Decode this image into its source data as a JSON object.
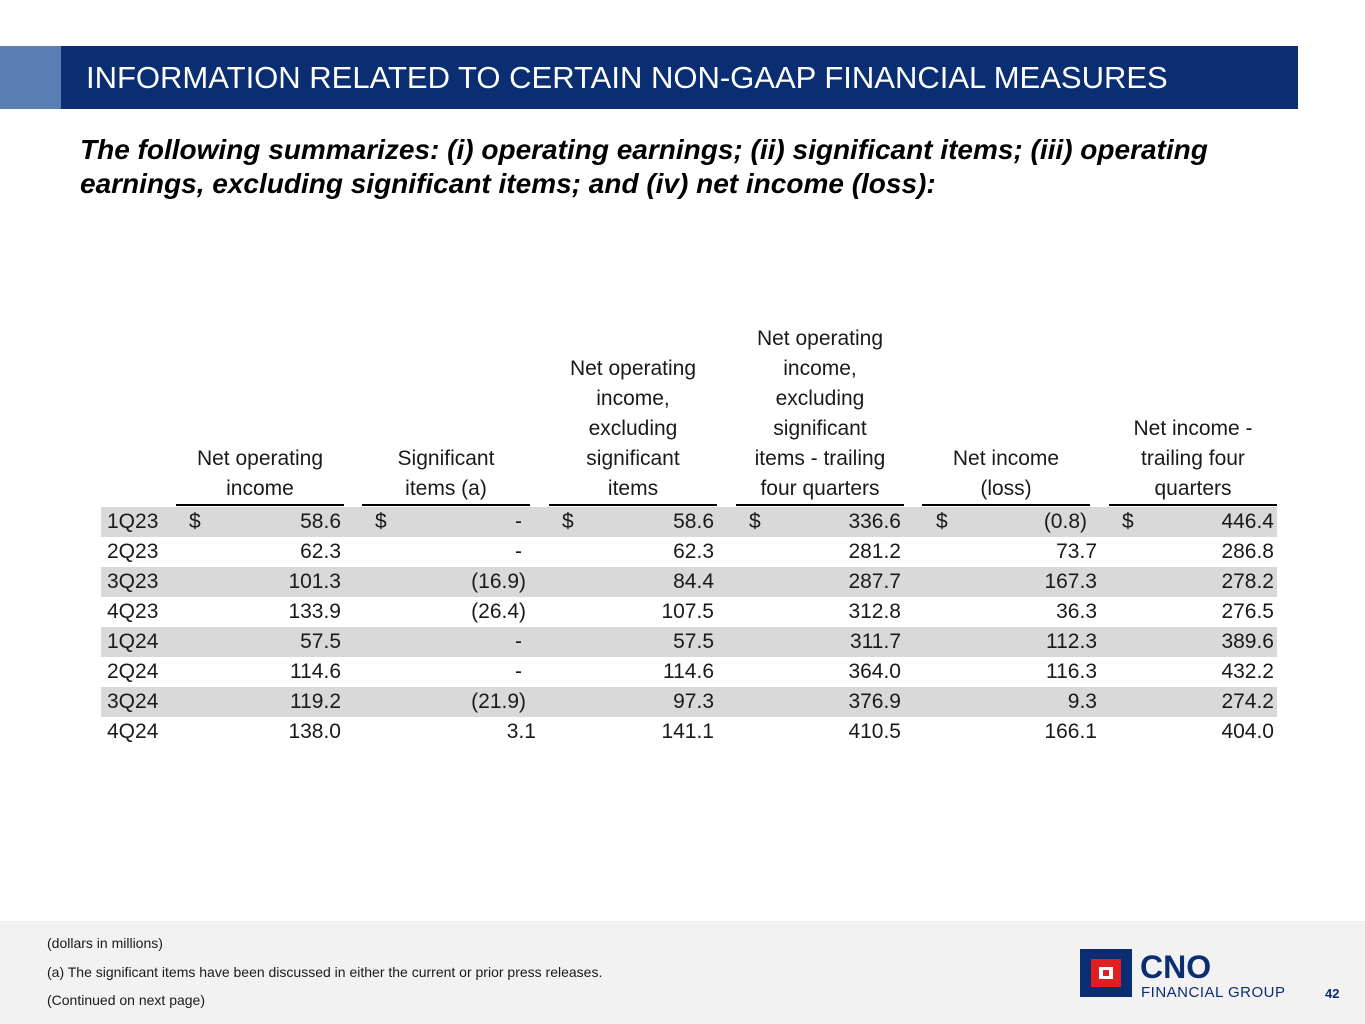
{
  "header": {
    "title": "INFORMATION RELATED TO CERTAIN NON-GAAP FINANCIAL MEASURES"
  },
  "subtitle": "The following summarizes: (i) operating earnings; (ii) significant items; (iii) operating earnings, excluding significant items; and (iv) net income (loss):",
  "table": {
    "columns": [
      "Net operating\nincome",
      "Significant\nitems (a)",
      "Net operating\nincome,\nexcluding\nsignificant\nitems",
      "Net operating\nincome,\nexcluding\nsignificant\nitems - trailing\nfour quarters",
      "Net income\n(loss)",
      "Net income -\ntrailing four\nquarters"
    ],
    "currency_symbol": "$",
    "rows": [
      {
        "label": "1Q23",
        "values": [
          "58.6",
          "-",
          "58.6",
          "336.6",
          "(0.8)",
          "446.4"
        ]
      },
      {
        "label": "2Q23",
        "values": [
          "62.3",
          "-",
          "62.3",
          "281.2",
          "73.7",
          "286.8"
        ]
      },
      {
        "label": "3Q23",
        "values": [
          "101.3",
          "(16.9)",
          "84.4",
          "287.7",
          "167.3",
          "278.2"
        ]
      },
      {
        "label": "4Q23",
        "values": [
          "133.9",
          "(26.4)",
          "107.5",
          "312.8",
          "36.3",
          "276.5"
        ]
      },
      {
        "label": "1Q24",
        "values": [
          "57.5",
          "-",
          "57.5",
          "311.7",
          "112.3",
          "389.6"
        ]
      },
      {
        "label": "2Q24",
        "values": [
          "114.6",
          "-",
          "114.6",
          "364.0",
          "116.3",
          "432.2"
        ]
      },
      {
        "label": "3Q24",
        "values": [
          "119.2",
          "(21.9)",
          "97.3",
          "376.9",
          "9.3",
          "274.2"
        ]
      },
      {
        "label": "4Q24",
        "values": [
          "138.0",
          "3.1",
          "141.1",
          "410.5",
          "166.1",
          "404.0"
        ]
      }
    ]
  },
  "footer": {
    "units_note": "(dollars in millions)",
    "footnote_a": "(a) The significant items have been discussed in either the current or prior press releases.",
    "continued": "(Continued on next page)",
    "logo_name": "CNO",
    "logo_subtitle": "FINANCIAL GROUP",
    "page_number": "42"
  },
  "colors": {
    "brand_navy": "#0b2d72",
    "accent_blue": "#5b7fb5",
    "logo_red": "#e02020",
    "row_shade": "#d9d9d9"
  }
}
